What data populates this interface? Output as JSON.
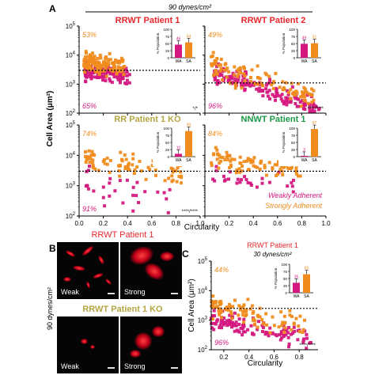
{
  "figure": {
    "panel_labels": {
      "A": "A",
      "B": "B",
      "C": "C"
    },
    "shear_A": "90 dynes/cm²",
    "shear_B": "90 dynes/cm²",
    "legend": {
      "weak": "Weakly Adherent",
      "strong": "Strongly Adherent"
    },
    "y_label": "Cell Area (μm²)",
    "x_label": "Circularity",
    "colors": {
      "weak": "#d4187f",
      "strong": "#f08c1e",
      "rrwt": "#e8262c",
      "rrko": "#b5a642",
      "nnwt": "#1c9a48",
      "dashed": "#000000"
    },
    "micrographs": {
      "title_wt": "RRWT Patient 1",
      "title_ko": "RRWT Patient 1 KO",
      "labels": [
        "Weak",
        "Strong",
        "Weak",
        "Strong"
      ]
    }
  },
  "chart_data": [
    {
      "type": "scatter",
      "title": "RRWT Patient 1",
      "pct_strong": "53%",
      "pct_weak": "65%",
      "significance": "*/*",
      "ylim": [
        100,
        100000
      ],
      "xlim": [
        0,
        1
      ],
      "yscale": "log",
      "threshold": 3000,
      "inset": {
        "ylabel": "% Population",
        "categories": [
          "WA",
          "SA"
        ],
        "values": [
          46,
          54
        ],
        "labels": [
          "46",
          "54"
        ],
        "ylim": [
          0,
          100
        ]
      },
      "series": [
        {
          "name": "Weakly Adherent",
          "points": []
        },
        {
          "name": "Strongly Adherent",
          "points": []
        }
      ]
    },
    {
      "type": "scatter",
      "title": "RRWT Patient 2",
      "pct_strong": "49%",
      "pct_weak": "96%",
      "significance": "****/****",
      "ylim": [
        100,
        100000
      ],
      "xlim": [
        0,
        1
      ],
      "yscale": "log",
      "threshold": 1100,
      "inset": {
        "ylabel": "% Population",
        "categories": [
          "WA",
          "SA"
        ],
        "values": [
          49,
          51
        ],
        "labels": [
          "49",
          "51"
        ],
        "ylim": [
          0,
          100
        ]
      },
      "series": [
        {
          "name": "Weakly Adherent",
          "points": []
        },
        {
          "name": "Strongly Adherent",
          "points": []
        }
      ]
    },
    {
      "type": "scatter",
      "title": "RR Patient 1 KO",
      "pct_strong": "74%",
      "pct_weak": "91%",
      "significance": "****/****",
      "ylim": [
        100,
        100000
      ],
      "xlim": [
        0,
        1
      ],
      "yscale": "log",
      "threshold": 3000,
      "inset": {
        "ylabel": "% Population",
        "categories": [
          "WA",
          "SA"
        ],
        "values": [
          10,
          90
        ],
        "labels": [
          "10",
          "90"
        ],
        "ylim": [
          0,
          100
        ]
      },
      "series": [
        {
          "name": "Weakly Adherent",
          "points": []
        },
        {
          "name": "Strongly Adherent",
          "points": []
        }
      ]
    },
    {
      "type": "scatter",
      "title": "NNWT Patient 1",
      "pct_strong": "84%",
      "pct_weak": "",
      "significance": "",
      "ylim": [
        100,
        100000
      ],
      "xlim": [
        0,
        1
      ],
      "yscale": "log",
      "threshold": 3000,
      "inset": {
        "ylabel": "% Population",
        "categories": [
          "WA",
          "SA"
        ],
        "values": [
          3,
          97
        ],
        "labels": [
          "3",
          "97"
        ],
        "ylim": [
          0,
          100
        ]
      },
      "series": [
        {
          "name": "Weakly Adherent",
          "points": []
        },
        {
          "name": "Strongly Adherent",
          "points": []
        }
      ]
    },
    {
      "type": "scatter",
      "title": "RRWT Patient 1",
      "subtitle": "30 dynes/cm²",
      "pct_strong": "44%",
      "pct_weak": "96%",
      "significance": "****/****",
      "xlabel": "Circularity",
      "ylabel": "Cell Area (μm²)",
      "ylim": [
        100,
        100000
      ],
      "xlim": [
        0.1,
        0.95
      ],
      "yscale": "log",
      "threshold": 2500,
      "xticks": [
        0.2,
        0.4,
        0.6,
        0.8
      ],
      "inset": {
        "ylabel": "% Population",
        "categories": [
          "WA",
          "SA"
        ],
        "values": [
          35,
          65
        ],
        "labels": [
          "35",
          "65"
        ],
        "ylim": [
          0,
          100
        ]
      },
      "series": [
        {
          "name": "Weakly Adherent",
          "points": []
        },
        {
          "name": "Strongly Adherent",
          "points": []
        }
      ]
    }
  ]
}
